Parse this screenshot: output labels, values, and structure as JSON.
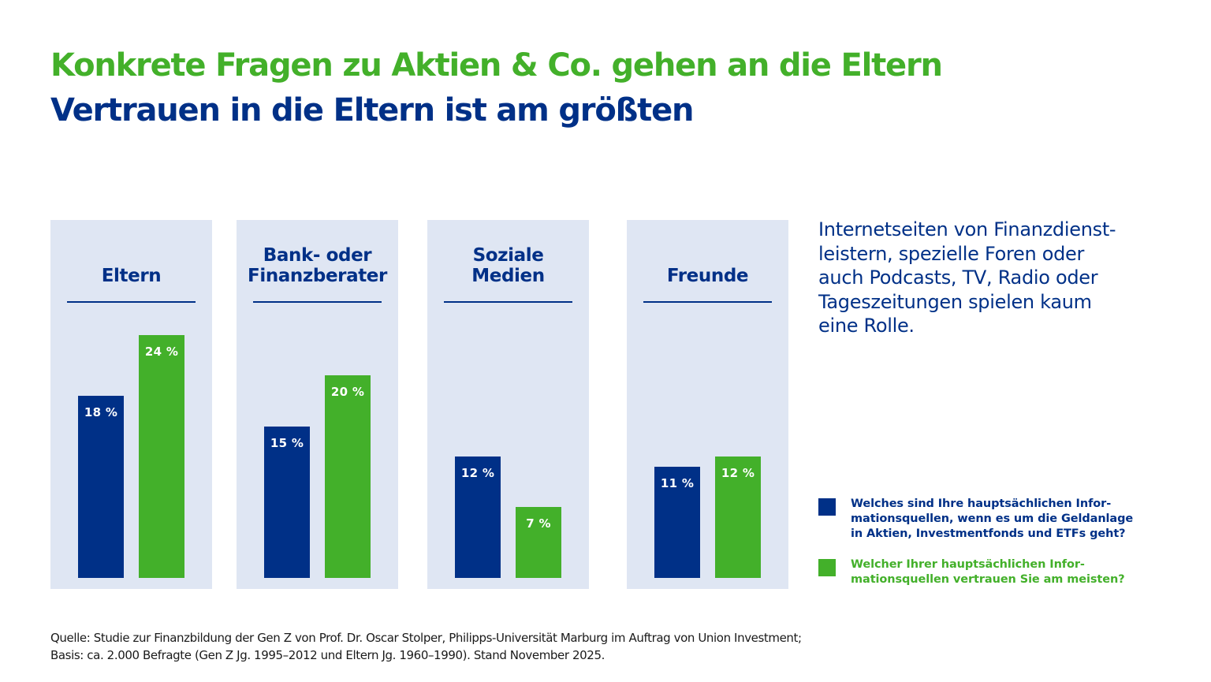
{
  "header": {
    "title": "Konkrete Fragen zu Aktien & Co. gehen an die Eltern",
    "subtitle": "Vertrauen in die Eltern ist am größten"
  },
  "colors": {
    "blue": "#003087",
    "green": "#43b02a",
    "panel_bg": "#dfe6f3"
  },
  "note": "Internetseiten von Finanzdienst-leistern, spezielle Foren oder auch Podcasts, TV, Radio oder Tageszeitungen spielen kaum eine Rolle.",
  "note_lines": [
    "Internetseiten von Finanzdienst-",
    "leistern, spezielle Foren oder",
    "auch Podcasts, TV, Radio oder",
    "Tageszeitungen spielen kaum",
    "eine Rolle."
  ],
  "legend": [
    {
      "lines": [
        "Welches sind Ihre hauptsächlichen Infor-",
        "mationsquellen, wenn es um die Geldanlage",
        "in Aktien, Investmentfonds und ETFs geht?"
      ],
      "color": "#003087"
    },
    {
      "lines": [
        "Welcher Ihrer hauptsächlichen Infor-",
        "mationsquellen vertrauen Sie am meisten?"
      ],
      "color": "#43b02a"
    }
  ],
  "source": {
    "line1": "Quelle: Studie zur Finanzbildung der Gen Z von Prof. Dr. Oscar Stolper, Philipps-Universität Marburg im Auftrag von Union Investment;",
    "line2": "Basis: ca. 2.000 Befragte (Gen Z Jg. 1995–2012 und Eltern Jg. 1960–1990). Stand November 2025."
  },
  "chart_data": {
    "type": "bar",
    "title": "Konkrete Fragen zu Aktien & Co. gehen an die Eltern",
    "subtitle": "Vertrauen in die Eltern ist am größten",
    "categories": [
      "Eltern",
      "Bank- oder Finanzberater",
      "Soziale Medien",
      "Freunde"
    ],
    "category_lines": [
      [
        "Eltern"
      ],
      [
        "Bank- oder",
        "Finanzberater"
      ],
      [
        "Soziale",
        "Medien"
      ],
      [
        "Freunde"
      ]
    ],
    "series": [
      {
        "name": "Welches sind Ihre hauptsächlichen Informationsquellen, wenn es um die Geldanlage in Aktien, Investmentfonds und ETFs geht?",
        "color": "#003087",
        "values": [
          18,
          15,
          12,
          11
        ],
        "labels": [
          "18 %",
          "15 %",
          "12 %",
          "11 %"
        ]
      },
      {
        "name": "Welcher Ihrer hauptsächlichen Informationsquellen vertrauen Sie am meisten?",
        "color": "#43b02a",
        "values": [
          24,
          20,
          7,
          12
        ],
        "labels": [
          "24 %",
          "20 %",
          "7 %",
          "12 %"
        ]
      }
    ],
    "unit": "%",
    "xlabel": "",
    "ylabel": "",
    "ylim": [
      0,
      24
    ],
    "grid": false,
    "legend_position": "bottom-right"
  }
}
